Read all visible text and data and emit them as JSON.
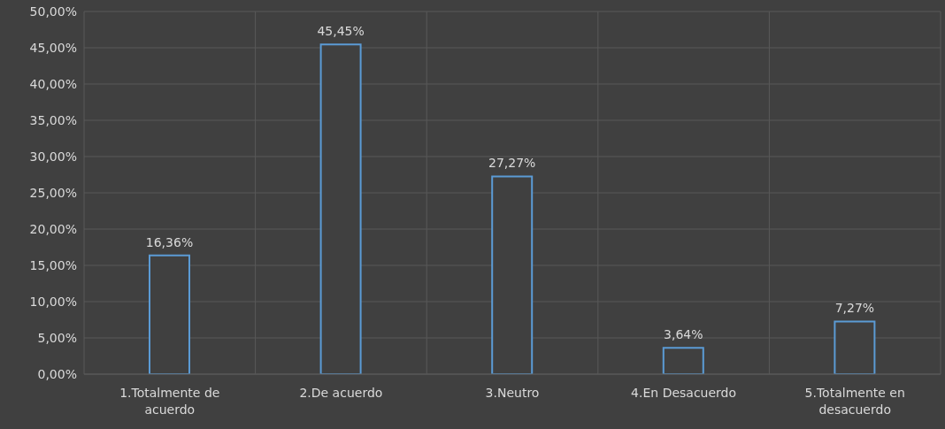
{
  "chart_data": {
    "type": "bar",
    "categories": [
      "1.Totalmente de acuerdo",
      "2.De acuerdo",
      "3.Neutro",
      "4.En Desacuerdo",
      "5.Totalmente en desacuerdo"
    ],
    "values": [
      16.36,
      45.45,
      27.27,
      3.64,
      7.27
    ],
    "value_labels": [
      "16,36%",
      "45,45%",
      "27,27%",
      "3,64%",
      "7,27%"
    ],
    "color": "#5b9bd5",
    "ylim": [
      0,
      50
    ],
    "yticks": [
      {
        "value": 0,
        "label": "0,00%"
      },
      {
        "value": 5,
        "label": "5,00%"
      },
      {
        "value": 10,
        "label": "10,00%"
      },
      {
        "value": 15,
        "label": "15,00%"
      },
      {
        "value": 20,
        "label": "20,00%"
      },
      {
        "value": 25,
        "label": "25,00%"
      },
      {
        "value": 30,
        "label": "30,00%"
      },
      {
        "value": 35,
        "label": "35,00%"
      },
      {
        "value": 40,
        "label": "40,00%"
      },
      {
        "value": 45,
        "label": "45,00%"
      },
      {
        "value": 50,
        "label": "50,00%"
      }
    ],
    "grid": true
  }
}
